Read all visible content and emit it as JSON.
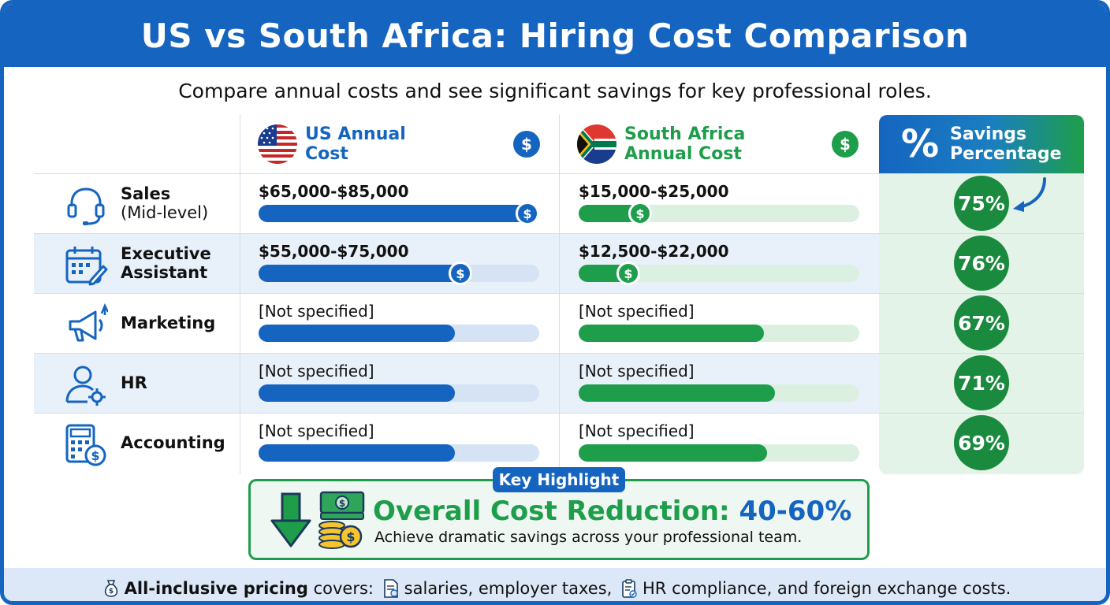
{
  "title": "US vs South Africa: Hiring Cost Comparison",
  "subtitle": "Compare annual costs and see significant savings for key professional roles.",
  "columns": {
    "us": "US Annual Cost",
    "us_line1": "US Annual",
    "us_line2": "Cost",
    "za_line1": "South Africa",
    "za_line2": "Annual Cost",
    "savings_line1": "Savings",
    "savings_line2": "Percentage",
    "savings_symbol": "%",
    "dollar": "$"
  },
  "colors": {
    "us": "#1565c0",
    "za": "#1e9e4a",
    "badge": "#1a8a3e"
  },
  "chart_data": {
    "type": "table",
    "rows": [
      {
        "role": "Sales",
        "role_sub": "(Mid-level)",
        "icon": "headset-icon",
        "us_cost": "$65,000-$85,000",
        "za_cost": "$15,000-$25,000",
        "us_bar": 1.0,
        "za_bar": 0.26,
        "us_knob": true,
        "za_knob": true,
        "savings": "75%"
      },
      {
        "role": "Executive",
        "role_sub2": "Assistant",
        "icon": "calendar-icon",
        "us_cost": "$55,000-$75,000",
        "za_cost": "$12,500-$22,000",
        "us_bar": 0.76,
        "za_bar": 0.22,
        "us_knob": true,
        "za_knob": true,
        "savings": "76%"
      },
      {
        "role": "Marketing",
        "icon": "megaphone-icon",
        "us_cost": "[Not specified]",
        "za_cost": "[Not specified]",
        "us_bar": 0.7,
        "za_bar": 0.66,
        "savings": "67%"
      },
      {
        "role": "HR",
        "icon": "user-gear-icon",
        "us_cost": "[Not specified]",
        "za_cost": "[Not specified]",
        "us_bar": 0.7,
        "za_bar": 0.7,
        "savings": "71%"
      },
      {
        "role": "Accounting",
        "icon": "calculator-icon",
        "us_cost": "[Not specified]",
        "za_cost": "[Not specified]",
        "us_bar": 0.7,
        "za_bar": 0.67,
        "savings": "69%"
      }
    ]
  },
  "highlight": {
    "tag": "Key Highlight",
    "title": "Overall Cost Reduction: ",
    "value": "40-60%",
    "description": "Achieve dramatic savings across your professional team."
  },
  "footer": {
    "bold": "All-inclusive pricing",
    "text1": " covers: ",
    "text2": "salaries, employer taxes, ",
    "text3": "HR compliance, and foreign exchange costs."
  }
}
